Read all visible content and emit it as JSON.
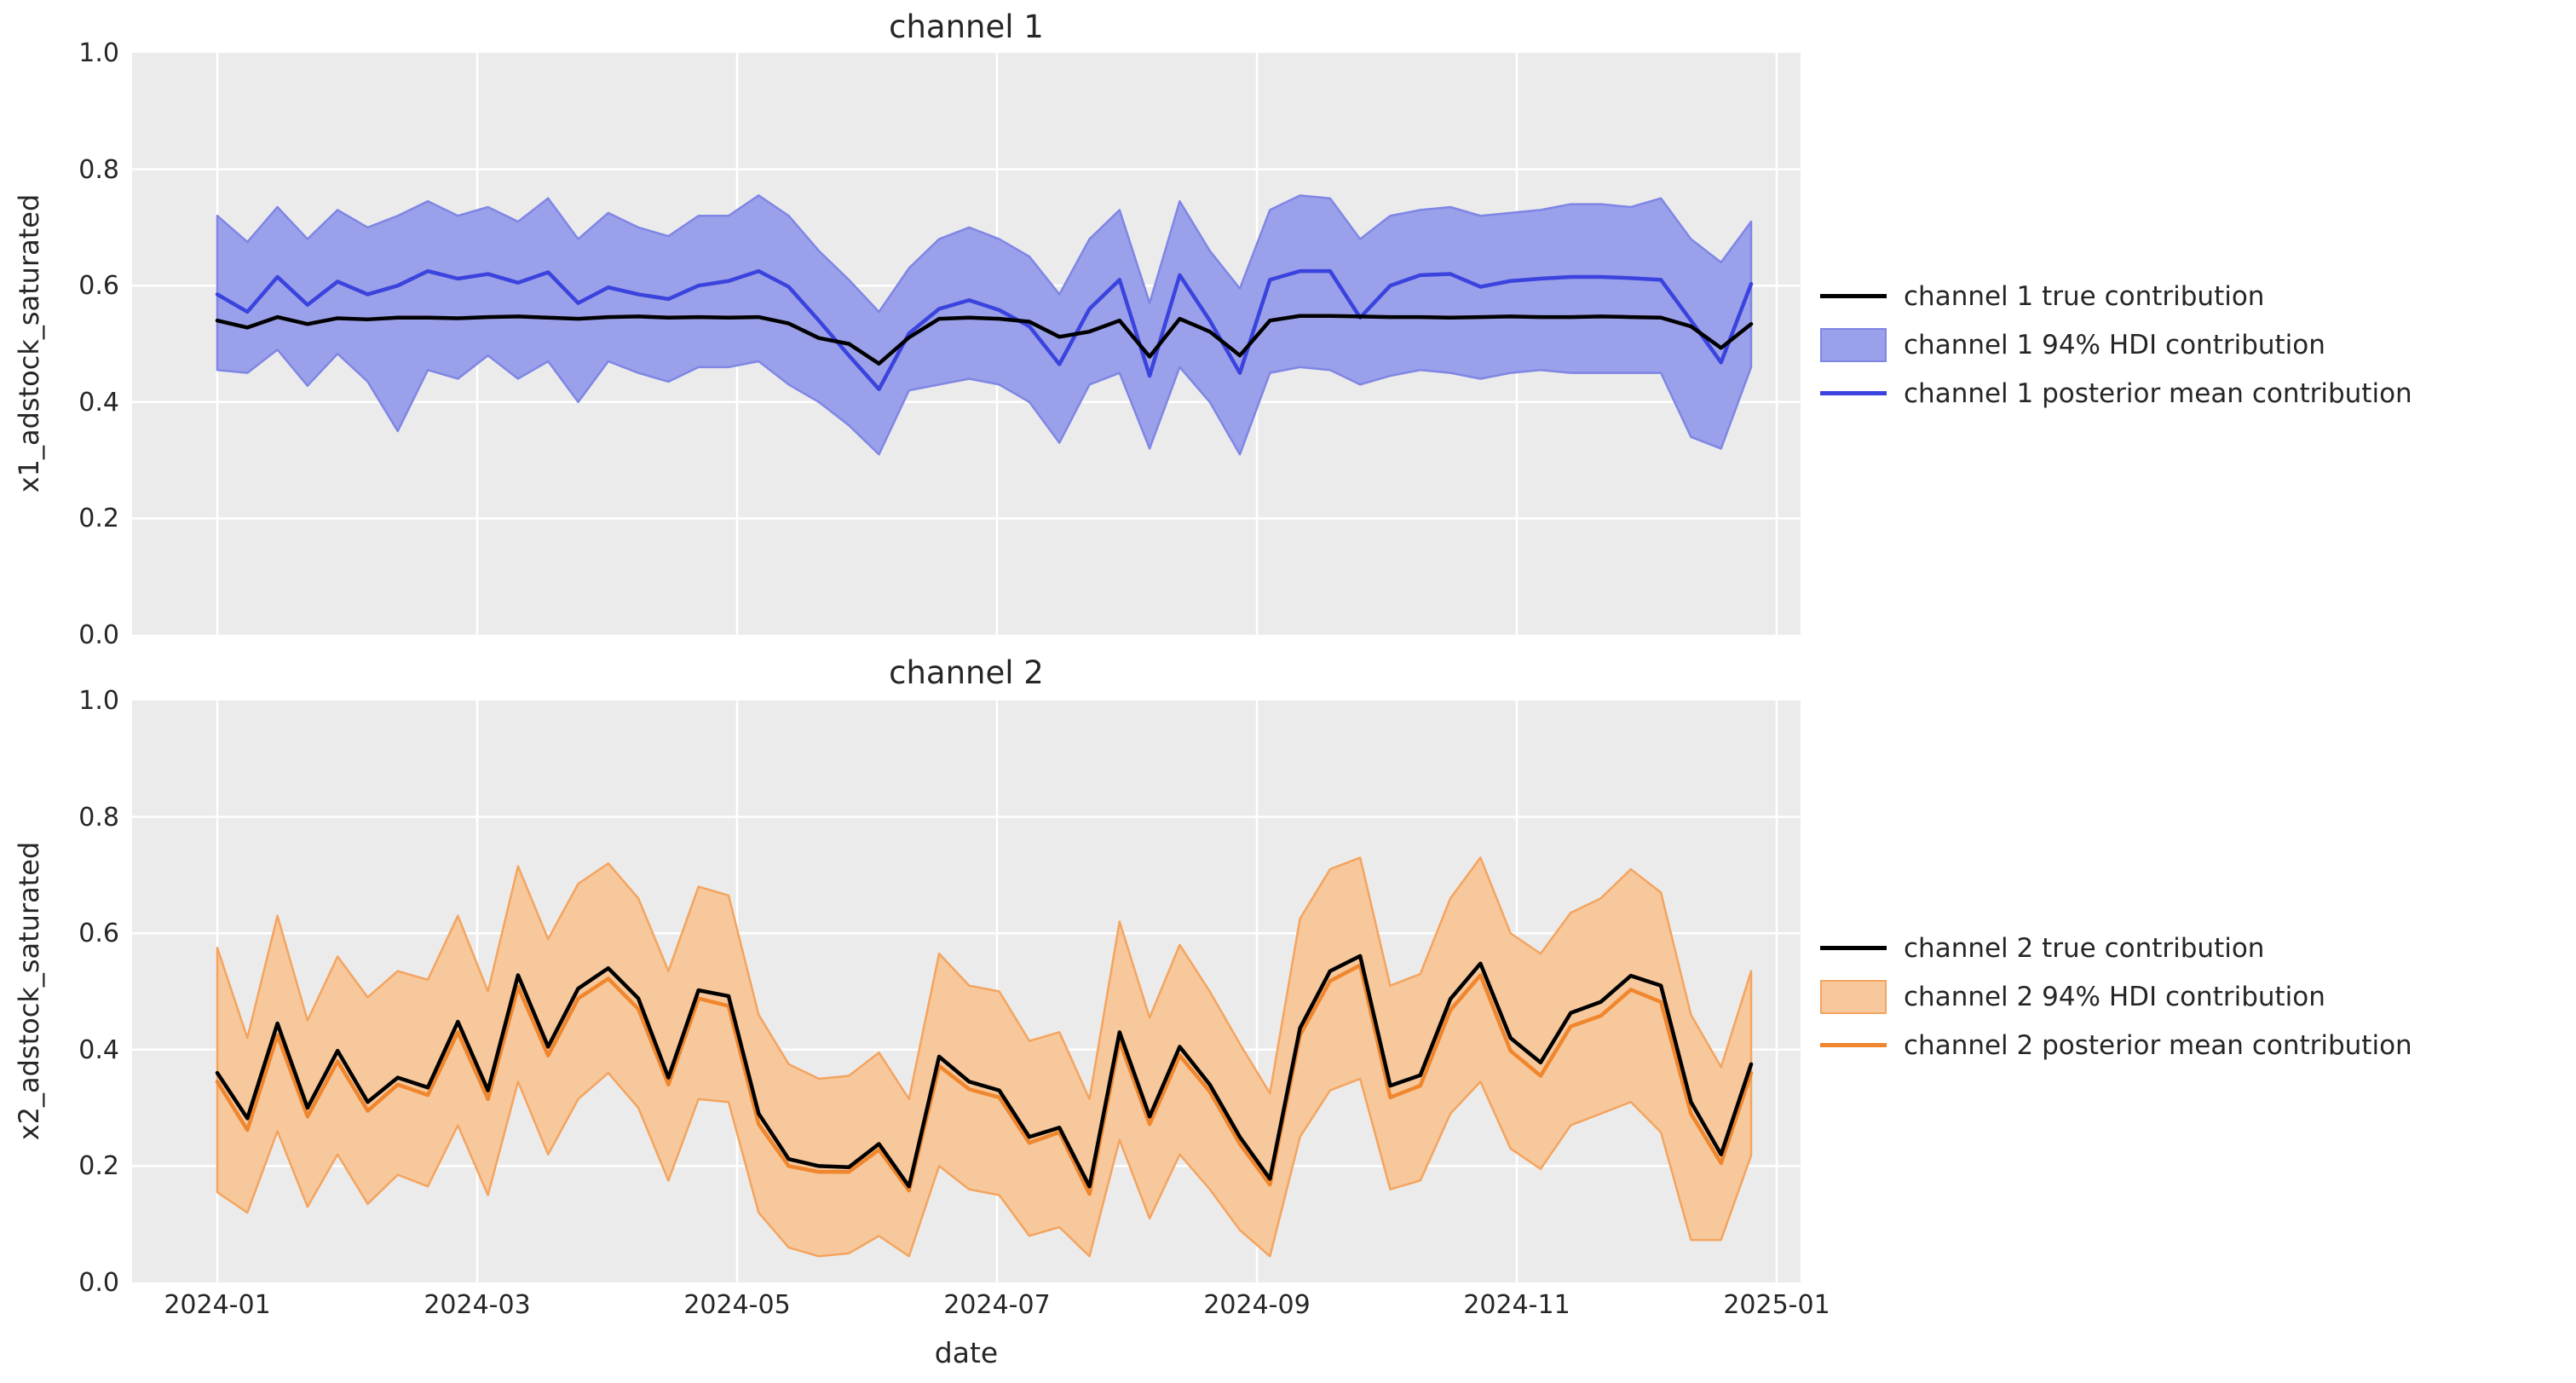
{
  "figure": {
    "background": "#ffffff",
    "plot_background": "#ebebeb",
    "grid_color": "#ffffff",
    "text_color": "#262626"
  },
  "x_axis": {
    "label": "date",
    "ticks": [
      "2024-01",
      "2024-03",
      "2024-05",
      "2024-07",
      "2024-09",
      "2024-11",
      "2025-01"
    ]
  },
  "y_axis": {
    "ticks": [
      "1.0",
      "0.8",
      "0.6",
      "0.4",
      "0.2",
      "0.0"
    ]
  },
  "chart_data": [
    {
      "type": "area",
      "title": "channel 1",
      "ylabel": "x1_adstock_saturated",
      "xlabel": "",
      "x_start": "2024-01-07",
      "x_step_days": 7,
      "n_points": 52,
      "ylim": [
        0.0,
        1.0
      ],
      "grid": true,
      "legend_position": "right",
      "colors": {
        "true_line": "#000000",
        "posterior_mean": "#3a43dd",
        "hdi_fill": "#9aa0e9",
        "hdi_edge": "#7f86e4"
      },
      "legend": [
        "channel 1 true contribution",
        "channel 1 94% HDI contribution",
        "channel 1 posterior mean contribution"
      ],
      "series": {
        "true_contribution": [
          0.54,
          0.528,
          0.546,
          0.534,
          0.544,
          0.542,
          0.545,
          0.545,
          0.544,
          0.546,
          0.547,
          0.545,
          0.543,
          0.546,
          0.547,
          0.545,
          0.546,
          0.545,
          0.546,
          0.535,
          0.51,
          0.5,
          0.466,
          0.511,
          0.543,
          0.545,
          0.543,
          0.538,
          0.512,
          0.521,
          0.54,
          0.478,
          0.543,
          0.521,
          0.48,
          0.54,
          0.548,
          0.548,
          0.547,
          0.546,
          0.546,
          0.545,
          0.546,
          0.547,
          0.546,
          0.546,
          0.547,
          0.546,
          0.545,
          0.53,
          0.493,
          0.534
        ],
        "posterior_mean_contribution": [
          0.585,
          0.555,
          0.615,
          0.567,
          0.607,
          0.585,
          0.6,
          0.625,
          0.612,
          0.62,
          0.605,
          0.623,
          0.57,
          0.597,
          0.585,
          0.577,
          0.6,
          0.608,
          0.625,
          0.598,
          0.54,
          0.48,
          0.422,
          0.518,
          0.56,
          0.575,
          0.558,
          0.53,
          0.465,
          0.56,
          0.61,
          0.445,
          0.618,
          0.54,
          0.45,
          0.61,
          0.625,
          0.625,
          0.545,
          0.6,
          0.618,
          0.62,
          0.598,
          0.608,
          0.612,
          0.615,
          0.615,
          0.613,
          0.61,
          0.54,
          0.468,
          0.603
        ],
        "hdi_94_upper": [
          0.72,
          0.675,
          0.735,
          0.68,
          0.73,
          0.7,
          0.72,
          0.745,
          0.72,
          0.735,
          0.71,
          0.75,
          0.68,
          0.725,
          0.7,
          0.685,
          0.72,
          0.72,
          0.755,
          0.72,
          0.66,
          0.61,
          0.555,
          0.63,
          0.68,
          0.7,
          0.68,
          0.65,
          0.585,
          0.68,
          0.73,
          0.57,
          0.745,
          0.66,
          0.595,
          0.73,
          0.755,
          0.75,
          0.68,
          0.72,
          0.73,
          0.735,
          0.72,
          0.725,
          0.73,
          0.74,
          0.74,
          0.735,
          0.75,
          0.68,
          0.64,
          0.71
        ],
        "hdi_94_lower": [
          0.455,
          0.45,
          0.49,
          0.428,
          0.483,
          0.435,
          0.35,
          0.455,
          0.44,
          0.48,
          0.44,
          0.47,
          0.4,
          0.47,
          0.45,
          0.435,
          0.46,
          0.46,
          0.47,
          0.43,
          0.4,
          0.36,
          0.31,
          0.42,
          0.43,
          0.44,
          0.43,
          0.4,
          0.33,
          0.43,
          0.45,
          0.32,
          0.46,
          0.4,
          0.31,
          0.45,
          0.46,
          0.455,
          0.43,
          0.445,
          0.455,
          0.45,
          0.44,
          0.45,
          0.455,
          0.45,
          0.45,
          0.45,
          0.45,
          0.34,
          0.32,
          0.46
        ]
      }
    },
    {
      "type": "area",
      "title": "channel 2",
      "ylabel": "x2_adstock_saturated",
      "xlabel": "date",
      "x_start": "2024-01-07",
      "x_step_days": 7,
      "n_points": 52,
      "ylim": [
        0.0,
        1.0
      ],
      "grid": true,
      "legend_position": "right",
      "colors": {
        "true_line": "#000000",
        "posterior_mean": "#f0862d",
        "hdi_fill": "#f6c89c",
        "hdi_edge": "#f4a45f"
      },
      "legend": [
        "channel 2 true contribution",
        "channel 2 94% HDI contribution",
        "channel 2 posterior mean contribution"
      ],
      "series": {
        "true_contribution": [
          0.36,
          0.282,
          0.445,
          0.3,
          0.398,
          0.31,
          0.352,
          0.335,
          0.448,
          0.33,
          0.528,
          0.405,
          0.505,
          0.54,
          0.488,
          0.352,
          0.502,
          0.492,
          0.29,
          0.212,
          0.2,
          0.198,
          0.238,
          0.165,
          0.388,
          0.345,
          0.33,
          0.25,
          0.266,
          0.165,
          0.43,
          0.285,
          0.405,
          0.34,
          0.25,
          0.178,
          0.437,
          0.535,
          0.561,
          0.338,
          0.356,
          0.487,
          0.548,
          0.42,
          0.378,
          0.463,
          0.482,
          0.527,
          0.51,
          0.31,
          0.22,
          0.375
        ],
        "posterior_mean_contribution": [
          0.345,
          0.262,
          0.425,
          0.285,
          0.38,
          0.295,
          0.34,
          0.322,
          0.43,
          0.315,
          0.508,
          0.39,
          0.488,
          0.522,
          0.47,
          0.34,
          0.488,
          0.475,
          0.272,
          0.2,
          0.19,
          0.19,
          0.228,
          0.158,
          0.372,
          0.332,
          0.318,
          0.24,
          0.258,
          0.152,
          0.415,
          0.272,
          0.39,
          0.328,
          0.238,
          0.168,
          0.425,
          0.518,
          0.545,
          0.318,
          0.338,
          0.468,
          0.528,
          0.398,
          0.355,
          0.44,
          0.458,
          0.503,
          0.482,
          0.29,
          0.205,
          0.36
        ],
        "hdi_94_upper": [
          0.575,
          0.42,
          0.63,
          0.45,
          0.56,
          0.49,
          0.535,
          0.52,
          0.63,
          0.5,
          0.715,
          0.59,
          0.685,
          0.72,
          0.66,
          0.535,
          0.68,
          0.665,
          0.46,
          0.375,
          0.35,
          0.355,
          0.395,
          0.315,
          0.565,
          0.51,
          0.5,
          0.415,
          0.43,
          0.315,
          0.62,
          0.455,
          0.58,
          0.5,
          0.41,
          0.325,
          0.625,
          0.71,
          0.73,
          0.51,
          0.53,
          0.66,
          0.73,
          0.6,
          0.565,
          0.635,
          0.66,
          0.71,
          0.67,
          0.46,
          0.37,
          0.535
        ],
        "hdi_94_lower": [
          0.155,
          0.12,
          0.26,
          0.13,
          0.22,
          0.135,
          0.185,
          0.165,
          0.27,
          0.15,
          0.345,
          0.22,
          0.315,
          0.36,
          0.3,
          0.175,
          0.315,
          0.31,
          0.12,
          0.06,
          0.045,
          0.05,
          0.08,
          0.045,
          0.2,
          0.16,
          0.15,
          0.08,
          0.095,
          0.045,
          0.245,
          0.11,
          0.22,
          0.16,
          0.09,
          0.045,
          0.25,
          0.33,
          0.35,
          0.16,
          0.175,
          0.29,
          0.345,
          0.23,
          0.195,
          0.27,
          0.29,
          0.31,
          0.258,
          0.073,
          0.073,
          0.218
        ]
      }
    }
  ]
}
